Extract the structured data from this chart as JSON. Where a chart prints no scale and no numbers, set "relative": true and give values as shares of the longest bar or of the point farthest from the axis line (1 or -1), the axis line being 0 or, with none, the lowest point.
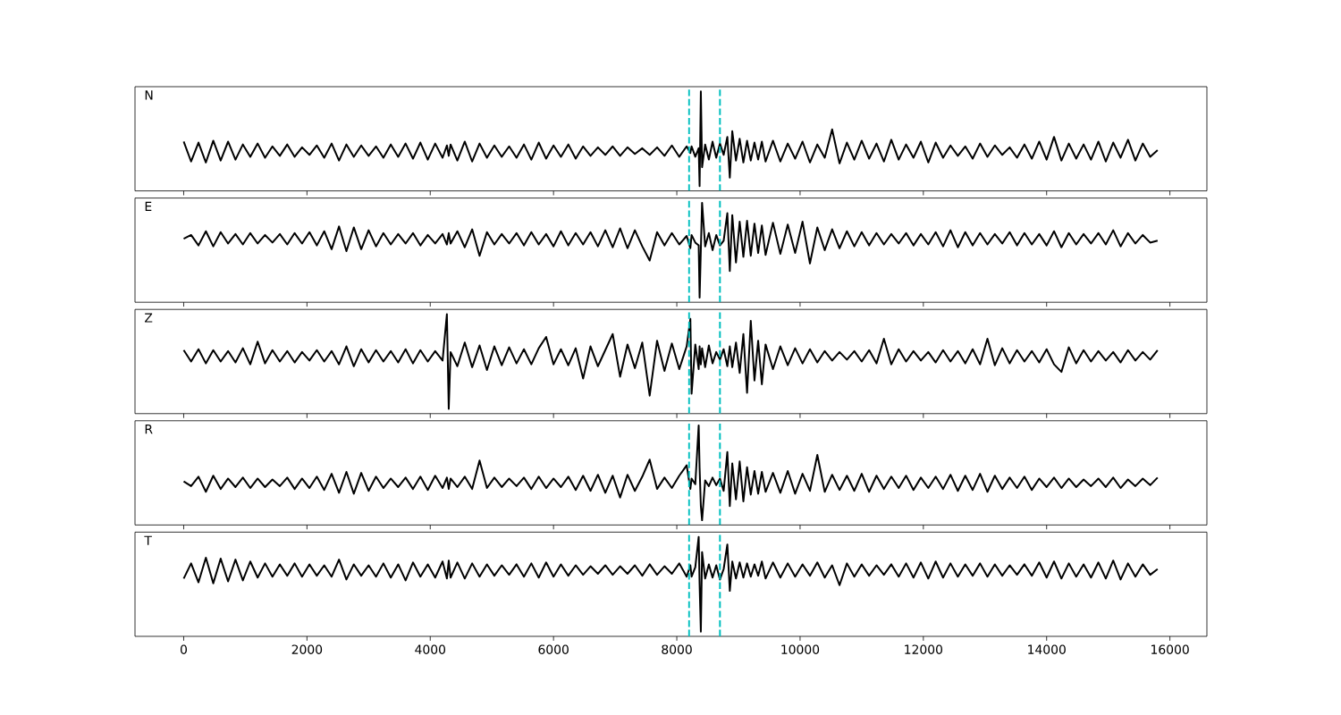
{
  "chart_data": [
    {
      "type": "line",
      "annotations": [
        "N"
      ],
      "relative": true,
      "xlim": [
        -790,
        16600
      ],
      "xticks": [
        0,
        2000,
        4000,
        6000,
        8000,
        10000,
        12000,
        14000,
        16000
      ],
      "tick_labels": false,
      "ref_lines": [
        {
          "axis": "x",
          "value": 8200,
          "color": "#00bfbf",
          "line_style": "dashed"
        },
        {
          "axis": "x",
          "value": 8700,
          "color": "#00bfbf",
          "line_style": "dashed"
        }
      ],
      "x": [
        0,
        120,
        240,
        360,
        480,
        600,
        720,
        840,
        960,
        1080,
        1200,
        1320,
        1440,
        1560,
        1680,
        1800,
        1920,
        2040,
        2160,
        2280,
        2400,
        2520,
        2640,
        2760,
        2880,
        3000,
        3120,
        3240,
        3360,
        3480,
        3600,
        3720,
        3840,
        3960,
        4080,
        4200,
        4270,
        4300,
        4330,
        4440,
        4560,
        4680,
        4800,
        4920,
        5040,
        5160,
        5280,
        5400,
        5520,
        5640,
        5760,
        5880,
        6000,
        6120,
        6240,
        6360,
        6480,
        6600,
        6720,
        6840,
        6960,
        7080,
        7200,
        7320,
        7440,
        7560,
        7680,
        7800,
        7920,
        8040,
        8160,
        8220,
        8240,
        8300,
        8355,
        8370,
        8390,
        8410,
        8460,
        8520,
        8580,
        8640,
        8700,
        8760,
        8820,
        8860,
        8900,
        8960,
        9020,
        9080,
        9140,
        9200,
        9260,
        9320,
        9380,
        9440,
        9560,
        9680,
        9800,
        9920,
        10040,
        10160,
        10280,
        10400,
        10520,
        10640,
        10760,
        10880,
        11000,
        11120,
        11240,
        11360,
        11480,
        11600,
        11720,
        11840,
        11960,
        12080,
        12200,
        12320,
        12440,
        12560,
        12680,
        12800,
        12920,
        13040,
        13160,
        13280,
        13400,
        13520,
        13640,
        13760,
        13880,
        14000,
        14120,
        14240,
        14360,
        14480,
        14600,
        14720,
        14840,
        14960,
        15080,
        15200,
        15320,
        15440,
        15560,
        15680,
        15800
      ],
      "series": [
        {
          "color": "#000000",
          "values": [
            0.47,
            0.26,
            0.46,
            0.25,
            0.48,
            0.27,
            0.47,
            0.28,
            0.44,
            0.31,
            0.45,
            0.3,
            0.42,
            0.32,
            0.44,
            0.31,
            0.41,
            0.33,
            0.43,
            0.3,
            0.45,
            0.27,
            0.44,
            0.31,
            0.43,
            0.32,
            0.42,
            0.3,
            0.44,
            0.31,
            0.45,
            0.29,
            0.46,
            0.28,
            0.45,
            0.3,
            0.43,
            0.32,
            0.44,
            0.27,
            0.47,
            0.26,
            0.45,
            0.3,
            0.43,
            0.31,
            0.42,
            0.3,
            0.44,
            0.28,
            0.46,
            0.29,
            0.43,
            0.31,
            0.44,
            0.29,
            0.42,
            0.32,
            0.41,
            0.33,
            0.42,
            0.32,
            0.41,
            0.34,
            0.4,
            0.33,
            0.41,
            0.32,
            0.43,
            0.31,
            0.42,
            0.35,
            0.42,
            0.31,
            0.4,
            0,
            1,
            0.2,
            0.44,
            0.28,
            0.47,
            0.3,
            0.45,
            0.33,
            0.52,
            0.09,
            0.58,
            0.27,
            0.5,
            0.25,
            0.48,
            0.27,
            0.46,
            0.28,
            0.47,
            0.26,
            0.48,
            0.26,
            0.45,
            0.29,
            0.47,
            0.25,
            0.44,
            0.3,
            0.6,
            0.24,
            0.46,
            0.28,
            0.48,
            0.29,
            0.45,
            0.26,
            0.49,
            0.28,
            0.44,
            0.3,
            0.47,
            0.25,
            0.46,
            0.3,
            0.43,
            0.32,
            0.42,
            0.29,
            0.45,
            0.31,
            0.43,
            0.33,
            0.41,
            0.3,
            0.44,
            0.29,
            0.47,
            0.28,
            0.52,
            0.27,
            0.45,
            0.29,
            0.44,
            0.28,
            0.47,
            0.26,
            0.46,
            0.3,
            0.49,
            0.27,
            0.45,
            0.31,
            0.38
          ]
        }
      ]
    },
    {
      "type": "line",
      "annotations": [
        "E"
      ],
      "relative": true,
      "xlim": [
        -790,
        16600
      ],
      "xticks": [
        0,
        2000,
        4000,
        6000,
        8000,
        10000,
        12000,
        14000,
        16000
      ],
      "tick_labels": false,
      "ref_lines": [
        {
          "axis": "x",
          "value": 8200,
          "color": "#00bfbf",
          "line_style": "dashed"
        },
        {
          "axis": "x",
          "value": 8700,
          "color": "#00bfbf",
          "line_style": "dashed"
        }
      ],
      "x": [
        0,
        120,
        240,
        360,
        480,
        600,
        720,
        840,
        960,
        1080,
        1200,
        1320,
        1440,
        1560,
        1680,
        1800,
        1920,
        2040,
        2160,
        2280,
        2400,
        2520,
        2640,
        2760,
        2880,
        3000,
        3120,
        3240,
        3360,
        3480,
        3600,
        3720,
        3840,
        3960,
        4080,
        4200,
        4270,
        4300,
        4330,
        4440,
        4560,
        4680,
        4800,
        4920,
        5040,
        5160,
        5280,
        5400,
        5520,
        5640,
        5760,
        5880,
        6000,
        6120,
        6240,
        6360,
        6480,
        6600,
        6720,
        6840,
        6960,
        7080,
        7200,
        7320,
        7440,
        7560,
        7680,
        7800,
        7920,
        8040,
        8160,
        8220,
        8240,
        8300,
        8355,
        8370,
        8390,
        8410,
        8460,
        8520,
        8580,
        8640,
        8700,
        8760,
        8820,
        8860,
        8900,
        8960,
        9020,
        9080,
        9140,
        9200,
        9260,
        9320,
        9380,
        9440,
        9560,
        9680,
        9800,
        9920,
        10040,
        10160,
        10280,
        10400,
        10520,
        10640,
        10760,
        10880,
        11000,
        11120,
        11240,
        11360,
        11480,
        11600,
        11720,
        11840,
        11960,
        12080,
        12200,
        12320,
        12440,
        12560,
        12680,
        12800,
        12920,
        13040,
        13160,
        13280,
        13400,
        13520,
        13640,
        13760,
        13880,
        14000,
        14120,
        14240,
        14360,
        14480,
        14600,
        14720,
        14840,
        14960,
        15080,
        15200,
        15320,
        15440,
        15560,
        15680,
        15800
      ],
      "series": [
        {
          "color": "#000000",
          "values": [
            0.62,
            0.66,
            0.55,
            0.7,
            0.54,
            0.69,
            0.57,
            0.67,
            0.56,
            0.68,
            0.57,
            0.66,
            0.58,
            0.67,
            0.56,
            0.68,
            0.57,
            0.69,
            0.55,
            0.7,
            0.51,
            0.75,
            0.49,
            0.74,
            0.51,
            0.71,
            0.54,
            0.68,
            0.56,
            0.67,
            0.57,
            0.68,
            0.55,
            0.66,
            0.57,
            0.67,
            0.56,
            0.68,
            0.57,
            0.7,
            0.53,
            0.72,
            0.44,
            0.69,
            0.56,
            0.67,
            0.57,
            0.68,
            0.55,
            0.69,
            0.56,
            0.67,
            0.54,
            0.7,
            0.55,
            0.68,
            0.56,
            0.69,
            0.54,
            0.71,
            0.53,
            0.73,
            0.52,
            0.71,
            0.54,
            0.39,
            0.69,
            0.55,
            0.68,
            0.56,
            0.65,
            0.52,
            0.66,
            0.58,
            0.55,
            0,
            0.5,
            1,
            0.54,
            0.68,
            0.5,
            0.66,
            0.55,
            0.6,
            0.89,
            0.28,
            0.87,
            0.37,
            0.8,
            0.43,
            0.81,
            0.44,
            0.78,
            0.47,
            0.76,
            0.45,
            0.79,
            0.46,
            0.77,
            0.47,
            0.8,
            0.36,
            0.74,
            0.5,
            0.72,
            0.52,
            0.7,
            0.54,
            0.69,
            0.55,
            0.68,
            0.56,
            0.67,
            0.57,
            0.68,
            0.55,
            0.67,
            0.56,
            0.69,
            0.54,
            0.71,
            0.53,
            0.69,
            0.55,
            0.68,
            0.56,
            0.67,
            0.57,
            0.69,
            0.55,
            0.68,
            0.56,
            0.67,
            0.55,
            0.7,
            0.53,
            0.68,
            0.56,
            0.67,
            0.57,
            0.68,
            0.56,
            0.71,
            0.54,
            0.68,
            0.57,
            0.66,
            0.58,
            0.6
          ]
        }
      ]
    },
    {
      "type": "line",
      "annotations": [
        "Z"
      ],
      "relative": true,
      "xlim": [
        -790,
        16600
      ],
      "xticks": [
        0,
        2000,
        4000,
        6000,
        8000,
        10000,
        12000,
        14000,
        16000
      ],
      "tick_labels": false,
      "ref_lines": [
        {
          "axis": "x",
          "value": 8200,
          "color": "#00bfbf",
          "line_style": "dashed"
        },
        {
          "axis": "x",
          "value": 8700,
          "color": "#00bfbf",
          "line_style": "dashed"
        }
      ],
      "x": [
        0,
        120,
        240,
        360,
        480,
        600,
        720,
        840,
        960,
        1080,
        1200,
        1320,
        1440,
        1560,
        1680,
        1800,
        1920,
        2040,
        2160,
        2280,
        2400,
        2520,
        2640,
        2760,
        2880,
        3000,
        3120,
        3240,
        3360,
        3480,
        3600,
        3720,
        3840,
        3960,
        4080,
        4200,
        4270,
        4300,
        4330,
        4440,
        4560,
        4680,
        4800,
        4920,
        5040,
        5160,
        5280,
        5400,
        5520,
        5640,
        5760,
        5880,
        6000,
        6120,
        6240,
        6360,
        6480,
        6600,
        6720,
        6840,
        6960,
        7080,
        7200,
        7320,
        7440,
        7560,
        7680,
        7800,
        7920,
        8040,
        8160,
        8220,
        8240,
        8300,
        8355,
        8370,
        8390,
        8410,
        8460,
        8520,
        8580,
        8640,
        8700,
        8760,
        8820,
        8860,
        8900,
        8960,
        9020,
        9080,
        9140,
        9200,
        9260,
        9320,
        9380,
        9440,
        9560,
        9680,
        9800,
        9920,
        10040,
        10160,
        10280,
        10400,
        10520,
        10640,
        10760,
        10880,
        11000,
        11120,
        11240,
        11360,
        11480,
        11600,
        11720,
        11840,
        11960,
        12080,
        12200,
        12320,
        12440,
        12560,
        12680,
        12800,
        12920,
        13040,
        13160,
        13280,
        13400,
        13520,
        13640,
        13760,
        13880,
        14000,
        14120,
        14240,
        14360,
        14480,
        14600,
        14720,
        14840,
        14960,
        15080,
        15200,
        15320,
        15440,
        15560,
        15680,
        15800
      ],
      "series": [
        {
          "color": "#000000",
          "values": [
            0.62,
            0.5,
            0.63,
            0.48,
            0.62,
            0.5,
            0.61,
            0.49,
            0.64,
            0.47,
            0.71,
            0.48,
            0.62,
            0.5,
            0.61,
            0.49,
            0.6,
            0.51,
            0.62,
            0.5,
            0.61,
            0.47,
            0.66,
            0.45,
            0.63,
            0.49,
            0.62,
            0.5,
            0.61,
            0.49,
            0.63,
            0.48,
            0.62,
            0.5,
            0.61,
            0.51,
            1,
            0,
            0.6,
            0.45,
            0.7,
            0.44,
            0.67,
            0.41,
            0.66,
            0.46,
            0.65,
            0.48,
            0.63,
            0.47,
            0.64,
            0.76,
            0.47,
            0.63,
            0.46,
            0.64,
            0.32,
            0.66,
            0.45,
            0.62,
            0.79,
            0.34,
            0.68,
            0.43,
            0.7,
            0.14,
            0.72,
            0.4,
            0.69,
            0.42,
            0.66,
            0.95,
            0.16,
            0.68,
            0.42,
            0.66,
            0.47,
            0.64,
            0.44,
            0.67,
            0.48,
            0.6,
            0.52,
            0.63,
            0.45,
            0.66,
            0.44,
            0.7,
            0.38,
            0.79,
            0.17,
            0.93,
            0.3,
            0.72,
            0.26,
            0.68,
            0.42,
            0.66,
            0.46,
            0.64,
            0.48,
            0.63,
            0.49,
            0.61,
            0.51,
            0.6,
            0.52,
            0.61,
            0.5,
            0.62,
            0.48,
            0.74,
            0.47,
            0.63,
            0.5,
            0.61,
            0.51,
            0.6,
            0.49,
            0.62,
            0.5,
            0.61,
            0.48,
            0.63,
            0.47,
            0.74,
            0.46,
            0.64,
            0.48,
            0.62,
            0.5,
            0.61,
            0.49,
            0.63,
            0.47,
            0.39,
            0.65,
            0.48,
            0.62,
            0.5,
            0.61,
            0.51,
            0.6,
            0.49,
            0.62,
            0.51,
            0.6,
            0.52,
            0.62
          ]
        }
      ]
    },
    {
      "type": "line",
      "annotations": [
        "R"
      ],
      "relative": true,
      "xlim": [
        -790,
        16600
      ],
      "xticks": [
        0,
        2000,
        4000,
        6000,
        8000,
        10000,
        12000,
        14000,
        16000
      ],
      "tick_labels": false,
      "ref_lines": [
        {
          "axis": "x",
          "value": 8200,
          "color": "#00bfbf",
          "line_style": "dashed"
        },
        {
          "axis": "x",
          "value": 8700,
          "color": "#00bfbf",
          "line_style": "dashed"
        }
      ],
      "x": [
        0,
        120,
        240,
        360,
        480,
        600,
        720,
        840,
        960,
        1080,
        1200,
        1320,
        1440,
        1560,
        1680,
        1800,
        1920,
        2040,
        2160,
        2280,
        2400,
        2520,
        2640,
        2760,
        2880,
        3000,
        3120,
        3240,
        3360,
        3480,
        3600,
        3720,
        3840,
        3960,
        4080,
        4200,
        4270,
        4300,
        4330,
        4440,
        4560,
        4680,
        4800,
        4920,
        5040,
        5160,
        5280,
        5400,
        5520,
        5640,
        5760,
        5880,
        6000,
        6120,
        6240,
        6360,
        6480,
        6600,
        6720,
        6840,
        6960,
        7080,
        7200,
        7320,
        7440,
        7560,
        7680,
        7800,
        7920,
        8040,
        8160,
        8220,
        8240,
        8300,
        8355,
        8370,
        8390,
        8410,
        8460,
        8520,
        8580,
        8640,
        8700,
        8760,
        8820,
        8860,
        8900,
        8960,
        9020,
        9080,
        9140,
        9200,
        9260,
        9320,
        9380,
        9440,
        9560,
        9680,
        9800,
        9920,
        10040,
        10160,
        10280,
        10400,
        10520,
        10640,
        10760,
        10880,
        11000,
        11120,
        11240,
        11360,
        11480,
        11600,
        11720,
        11840,
        11960,
        12080,
        12200,
        12320,
        12440,
        12560,
        12680,
        12800,
        12920,
        13040,
        13160,
        13280,
        13400,
        13520,
        13640,
        13760,
        13880,
        14000,
        14120,
        14240,
        14360,
        14480,
        14600,
        14720,
        14840,
        14960,
        15080,
        15200,
        15320,
        15440,
        15560,
        15680,
        15800
      ],
      "series": [
        {
          "color": "#000000",
          "values": [
            0.41,
            0.36,
            0.46,
            0.3,
            0.47,
            0.33,
            0.44,
            0.35,
            0.45,
            0.34,
            0.44,
            0.35,
            0.43,
            0.36,
            0.45,
            0.33,
            0.44,
            0.34,
            0.46,
            0.32,
            0.49,
            0.29,
            0.51,
            0.28,
            0.5,
            0.31,
            0.46,
            0.34,
            0.44,
            0.35,
            0.45,
            0.33,
            0.46,
            0.32,
            0.47,
            0.34,
            0.45,
            0.33,
            0.44,
            0.35,
            0.46,
            0.33,
            0.63,
            0.34,
            0.45,
            0.35,
            0.44,
            0.36,
            0.45,
            0.33,
            0.46,
            0.34,
            0.44,
            0.35,
            0.46,
            0.32,
            0.47,
            0.31,
            0.48,
            0.29,
            0.47,
            0.24,
            0.48,
            0.31,
            0.46,
            0.64,
            0.33,
            0.45,
            0.34,
            0.47,
            0.58,
            0.33,
            0.44,
            0.38,
            1,
            0.55,
            0.15,
            0,
            0.42,
            0.36,
            0.45,
            0.37,
            0.44,
            0.31,
            0.72,
            0.15,
            0.6,
            0.22,
            0.62,
            0.2,
            0.56,
            0.27,
            0.52,
            0.28,
            0.51,
            0.3,
            0.5,
            0.29,
            0.52,
            0.28,
            0.49,
            0.31,
            0.69,
            0.3,
            0.48,
            0.32,
            0.47,
            0.31,
            0.49,
            0.3,
            0.47,
            0.33,
            0.46,
            0.34,
            0.47,
            0.32,
            0.45,
            0.34,
            0.46,
            0.33,
            0.48,
            0.31,
            0.47,
            0.32,
            0.49,
            0.3,
            0.47,
            0.33,
            0.45,
            0.34,
            0.46,
            0.32,
            0.44,
            0.35,
            0.45,
            0.34,
            0.44,
            0.35,
            0.43,
            0.36,
            0.44,
            0.35,
            0.45,
            0.34,
            0.43,
            0.36,
            0.44,
            0.37,
            0.45
          ]
        }
      ]
    },
    {
      "type": "line",
      "annotations": [
        "T"
      ],
      "relative": true,
      "xlim": [
        -790,
        16600
      ],
      "xticks": [
        0,
        2000,
        4000,
        6000,
        8000,
        10000,
        12000,
        14000,
        16000
      ],
      "tick_labels": "x",
      "ref_lines": [
        {
          "axis": "x",
          "value": 8200,
          "color": "#00bfbf",
          "line_style": "dashed"
        },
        {
          "axis": "x",
          "value": 8700,
          "color": "#00bfbf",
          "line_style": "dashed"
        }
      ],
      "x": [
        0,
        120,
        240,
        360,
        480,
        600,
        720,
        840,
        960,
        1080,
        1200,
        1320,
        1440,
        1560,
        1680,
        1800,
        1920,
        2040,
        2160,
        2280,
        2400,
        2520,
        2640,
        2760,
        2880,
        3000,
        3120,
        3240,
        3360,
        3480,
        3600,
        3720,
        3840,
        3960,
        4080,
        4200,
        4270,
        4300,
        4330,
        4440,
        4560,
        4680,
        4800,
        4920,
        5040,
        5160,
        5280,
        5400,
        5520,
        5640,
        5760,
        5880,
        6000,
        6120,
        6240,
        6360,
        6480,
        6600,
        6720,
        6840,
        6960,
        7080,
        7200,
        7320,
        7440,
        7560,
        7680,
        7800,
        7920,
        8040,
        8160,
        8220,
        8240,
        8300,
        8355,
        8370,
        8390,
        8410,
        8460,
        8520,
        8580,
        8640,
        8700,
        8760,
        8820,
        8860,
        8900,
        8960,
        9020,
        9080,
        9140,
        9200,
        9260,
        9320,
        9380,
        9440,
        9560,
        9680,
        9800,
        9920,
        10040,
        10160,
        10280,
        10400,
        10520,
        10640,
        10760,
        10880,
        11000,
        11120,
        11240,
        11360,
        11480,
        11600,
        11720,
        11840,
        11960,
        12080,
        12200,
        12320,
        12440,
        12560,
        12680,
        12800,
        12920,
        13040,
        13160,
        13280,
        13400,
        13520,
        13640,
        13760,
        13880,
        14000,
        14120,
        14240,
        14360,
        14480,
        14600,
        14720,
        14840,
        14960,
        15080,
        15200,
        15320,
        15440,
        15560,
        15680,
        15800
      ],
      "series": [
        {
          "color": "#000000",
          "values": [
            0.56,
            0.72,
            0.52,
            0.78,
            0.51,
            0.77,
            0.53,
            0.76,
            0.54,
            0.74,
            0.57,
            0.72,
            0.58,
            0.71,
            0.59,
            0.72,
            0.58,
            0.71,
            0.59,
            0.7,
            0.58,
            0.76,
            0.55,
            0.71,
            0.59,
            0.7,
            0.58,
            0.72,
            0.57,
            0.71,
            0.54,
            0.73,
            0.58,
            0.71,
            0.57,
            0.74,
            0.56,
            0.75,
            0.57,
            0.73,
            0.56,
            0.72,
            0.58,
            0.71,
            0.59,
            0.7,
            0.6,
            0.71,
            0.58,
            0.72,
            0.57,
            0.73,
            0.58,
            0.71,
            0.59,
            0.7,
            0.6,
            0.69,
            0.61,
            0.7,
            0.6,
            0.69,
            0.61,
            0.7,
            0.59,
            0.71,
            0.6,
            0.69,
            0.61,
            0.72,
            0.58,
            0.7,
            0.58,
            0.68,
            1,
            0.5,
            0,
            0.84,
            0.56,
            0.71,
            0.57,
            0.7,
            0.55,
            0.66,
            0.92,
            0.43,
            0.74,
            0.56,
            0.73,
            0.57,
            0.72,
            0.58,
            0.71,
            0.59,
            0.74,
            0.56,
            0.73,
            0.57,
            0.72,
            0.58,
            0.71,
            0.59,
            0.73,
            0.57,
            0.7,
            0.49,
            0.72,
            0.58,
            0.71,
            0.59,
            0.7,
            0.6,
            0.71,
            0.58,
            0.72,
            0.57,
            0.73,
            0.56,
            0.74,
            0.57,
            0.72,
            0.58,
            0.71,
            0.59,
            0.72,
            0.58,
            0.71,
            0.59,
            0.7,
            0.6,
            0.71,
            0.59,
            0.73,
            0.57,
            0.74,
            0.56,
            0.72,
            0.58,
            0.71,
            0.57,
            0.73,
            0.56,
            0.75,
            0.55,
            0.72,
            0.58,
            0.71,
            0.6,
            0.66
          ]
        }
      ]
    }
  ]
}
